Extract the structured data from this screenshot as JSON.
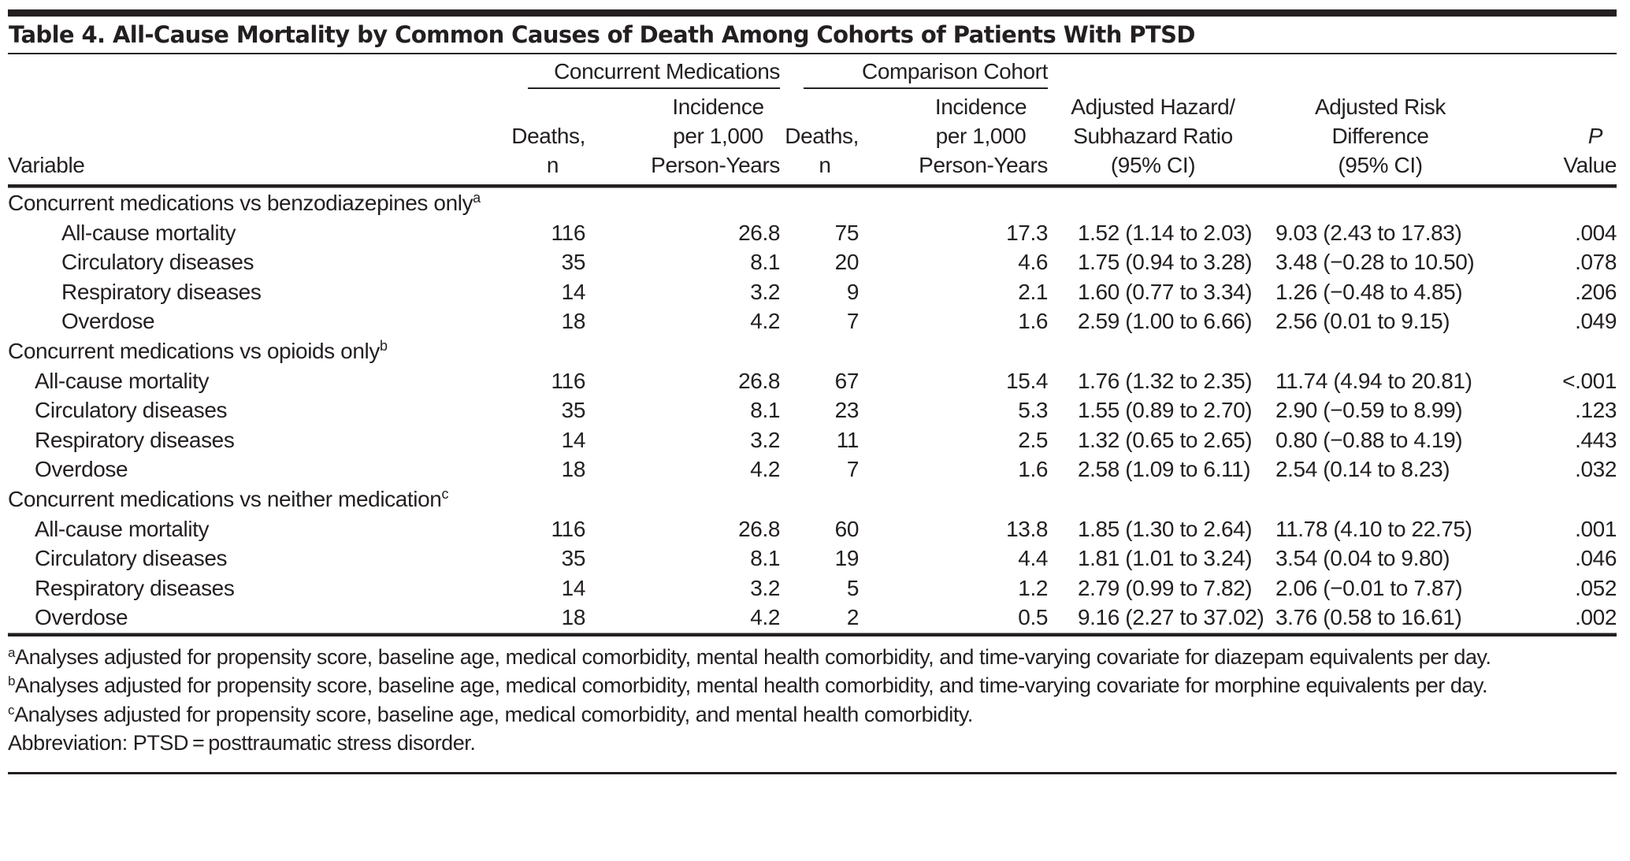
{
  "table": {
    "title": "Table 4. All-Cause Mortality by Common Causes of Death Among Cohorts of Patients With PTSD",
    "group_headers": {
      "concurrent": "Concurrent Medications",
      "comparison": "Comparison Cohort"
    },
    "columns": {
      "variable": "Variable",
      "deaths1_line1": "Deaths,",
      "deaths1_line2": "n",
      "incidence1_line1": "Incidence",
      "incidence1_line2": "per 1,000",
      "incidence1_line3": "Person-Years",
      "deaths2_line1": "Deaths,",
      "deaths2_line2": "n",
      "incidence2_line1": "Incidence",
      "incidence2_line2": "per 1,000",
      "incidence2_line3": "Person-Years",
      "hr_line1": "Adjusted Hazard/",
      "hr_line2": "Subhazard Ratio",
      "hr_line3": "(95% CI)",
      "rd_line1": "Adjusted Risk",
      "rd_line2": "Difference",
      "rd_line3": "(95% CI)",
      "p_line1": "P",
      "p_line2": "Value"
    },
    "sections": [
      {
        "label": "Concurrent medications vs benzodiazepines only",
        "footnote_mark": "a",
        "rows": [
          {
            "variable": "All-cause mortality",
            "deaths1": "116",
            "incidence1": "26.8",
            "deaths2": "75",
            "incidence2": "17.3",
            "hr": "1.52 (1.14 to 2.03)",
            "rd": "9.03 (2.43 to 17.83)",
            "p": ".004"
          },
          {
            "variable": "Circulatory diseases",
            "deaths1": "35",
            "incidence1": "8.1",
            "deaths2": "20",
            "incidence2": "4.6",
            "hr": "1.75 (0.94 to 3.28)",
            "rd": "3.48 (−0.28 to 10.50)",
            "p": ".078"
          },
          {
            "variable": "Respiratory diseases",
            "deaths1": "14",
            "incidence1": "3.2",
            "deaths2": "9",
            "incidence2": "2.1",
            "hr": "1.60 (0.77 to 3.34)",
            "rd": "1.26 (−0.48 to 4.85)",
            "p": ".206"
          },
          {
            "variable": "Overdose",
            "deaths1": "18",
            "incidence1": "4.2",
            "deaths2": "7",
            "incidence2": "1.6",
            "hr": "2.59 (1.00 to 6.66)",
            "rd": "2.56 (0.01 to 9.15)",
            "p": ".049"
          }
        ]
      },
      {
        "label": "Concurrent medications vs opioids only",
        "footnote_mark": "b",
        "rows": [
          {
            "variable": "All-cause mortality",
            "deaths1": "116",
            "incidence1": "26.8",
            "deaths2": "67",
            "incidence2": "15.4",
            "hr": "1.76 (1.32 to 2.35)",
            "rd": "11.74 (4.94 to 20.81)",
            "p": "<.001"
          },
          {
            "variable": "Circulatory diseases",
            "deaths1": "35",
            "incidence1": "8.1",
            "deaths2": "23",
            "incidence2": "5.3",
            "hr": "1.55 (0.89 to 2.70)",
            "rd": "2.90 (−0.59 to 8.99)",
            "p": ".123"
          },
          {
            "variable": "Respiratory diseases",
            "deaths1": "14",
            "incidence1": "3.2",
            "deaths2": "11",
            "incidence2": "2.5",
            "hr": "1.32 (0.65 to 2.65)",
            "rd": "0.80 (−0.88 to 4.19)",
            "p": ".443"
          },
          {
            "variable": "Overdose",
            "deaths1": "18",
            "incidence1": "4.2",
            "deaths2": "7",
            "incidence2": "1.6",
            "hr": "2.58 (1.09 to 6.11)",
            "rd": "2.54 (0.14 to 8.23)",
            "p": ".032"
          }
        ]
      },
      {
        "label": "Concurrent medications vs neither medication",
        "footnote_mark": "c",
        "rows": [
          {
            "variable": "All-cause mortality",
            "deaths1": "116",
            "incidence1": "26.8",
            "deaths2": "60",
            "incidence2": "13.8",
            "hr": "1.85 (1.30 to 2.64)",
            "rd": "11.78 (4.10 to 22.75)",
            "p": ".001"
          },
          {
            "variable": "Circulatory diseases",
            "deaths1": "35",
            "incidence1": "8.1",
            "deaths2": "19",
            "incidence2": "4.4",
            "hr": "1.81 (1.01 to 3.24)",
            "rd": "3.54 (0.04 to 9.80)",
            "p": ".046"
          },
          {
            "variable": "Respiratory diseases",
            "deaths1": "14",
            "incidence1": "3.2",
            "deaths2": "5",
            "incidence2": "1.2",
            "hr": "2.79 (0.99 to 7.82)",
            "rd": "2.06 (−0.01 to 7.87)",
            "p": ".052"
          },
          {
            "variable": "Overdose",
            "deaths1": "18",
            "incidence1": "4.2",
            "deaths2": "2",
            "incidence2": "0.5",
            "hr": "9.16 (2.27 to 37.02)",
            "rd": "3.76 (0.58 to 16.61)",
            "p": ".002"
          }
        ]
      }
    ],
    "footnotes": [
      {
        "mark": "a",
        "text": "Analyses adjusted for propensity score, baseline age, medical comorbidity, mental health comorbidity, and time-varying covariate for diazepam equivalents per day."
      },
      {
        "mark": "b",
        "text": "Analyses adjusted for propensity score, baseline age, medical comorbidity, mental health comorbidity, and time-varying covariate for morphine equivalents per day."
      },
      {
        "mark": "c",
        "text": "Analyses adjusted for propensity score, baseline age, medical comorbidity, and mental health comorbidity."
      }
    ],
    "abbreviation": "Abbreviation: PTSD = posttraumatic stress disorder."
  }
}
